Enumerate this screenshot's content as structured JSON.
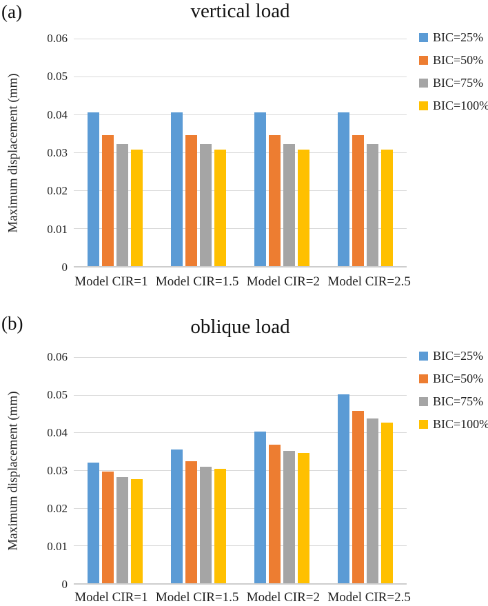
{
  "colors": {
    "grid": "#D9D9D9",
    "axis": "#CDCDCD",
    "text": "#1F1F1F"
  },
  "chart_data": [
    {
      "type": "bar",
      "panel_label": "(a)",
      "title": "vertical load",
      "xlabel": "",
      "ylabel": "Maximum displacement (mm)",
      "ylim": [
        0,
        0.06
      ],
      "yticks": [
        "0.06",
        "0.05",
        "0.04",
        "0.03",
        "0.02",
        "0.01",
        "0"
      ],
      "grid": true,
      "legend_position": "top-right",
      "categories": [
        "Model CIR=1",
        "Model CIR=1.5",
        "Model CIR=2",
        "Model CIR=2.5"
      ],
      "series": [
        {
          "name": "BIC=25%",
          "color": "#5B9BD5",
          "values": [
            0.0406,
            0.0406,
            0.0406,
            0.0406
          ]
        },
        {
          "name": "BIC=50%",
          "color": "#ED7D31",
          "values": [
            0.0346,
            0.0346,
            0.0346,
            0.0346
          ]
        },
        {
          "name": "BIC=75%",
          "color": "#A5A5A5",
          "values": [
            0.0321,
            0.0321,
            0.0321,
            0.0321
          ]
        },
        {
          "name": "BIC=100%",
          "color": "#FFC000",
          "values": [
            0.0307,
            0.0307,
            0.0307,
            0.0307
          ]
        }
      ]
    },
    {
      "type": "bar",
      "panel_label": "(b)",
      "title": "oblique load",
      "xlabel": "",
      "ylabel": "Maximum displacement (mm)",
      "ylim": [
        0,
        0.06
      ],
      "yticks": [
        "0.06",
        "0.05",
        "0.04",
        "0.03",
        "0.02",
        "0.01",
        "0"
      ],
      "grid": true,
      "legend_position": "top-right",
      "categories": [
        "Model CIR=1",
        "Model CIR=1.5",
        "Model CIR=2",
        "Model CIR=2.5"
      ],
      "series": [
        {
          "name": "BIC=25%",
          "color": "#5B9BD5",
          "values": [
            0.0321,
            0.0355,
            0.0403,
            0.0501
          ]
        },
        {
          "name": "BIC=50%",
          "color": "#ED7D31",
          "values": [
            0.0296,
            0.0324,
            0.0368,
            0.0457
          ]
        },
        {
          "name": "BIC=75%",
          "color": "#A5A5A5",
          "values": [
            0.0282,
            0.031,
            0.0352,
            0.0437
          ]
        },
        {
          "name": "BIC=100%",
          "color": "#FFC000",
          "values": [
            0.0277,
            0.0304,
            0.0345,
            0.0426
          ]
        }
      ]
    }
  ]
}
